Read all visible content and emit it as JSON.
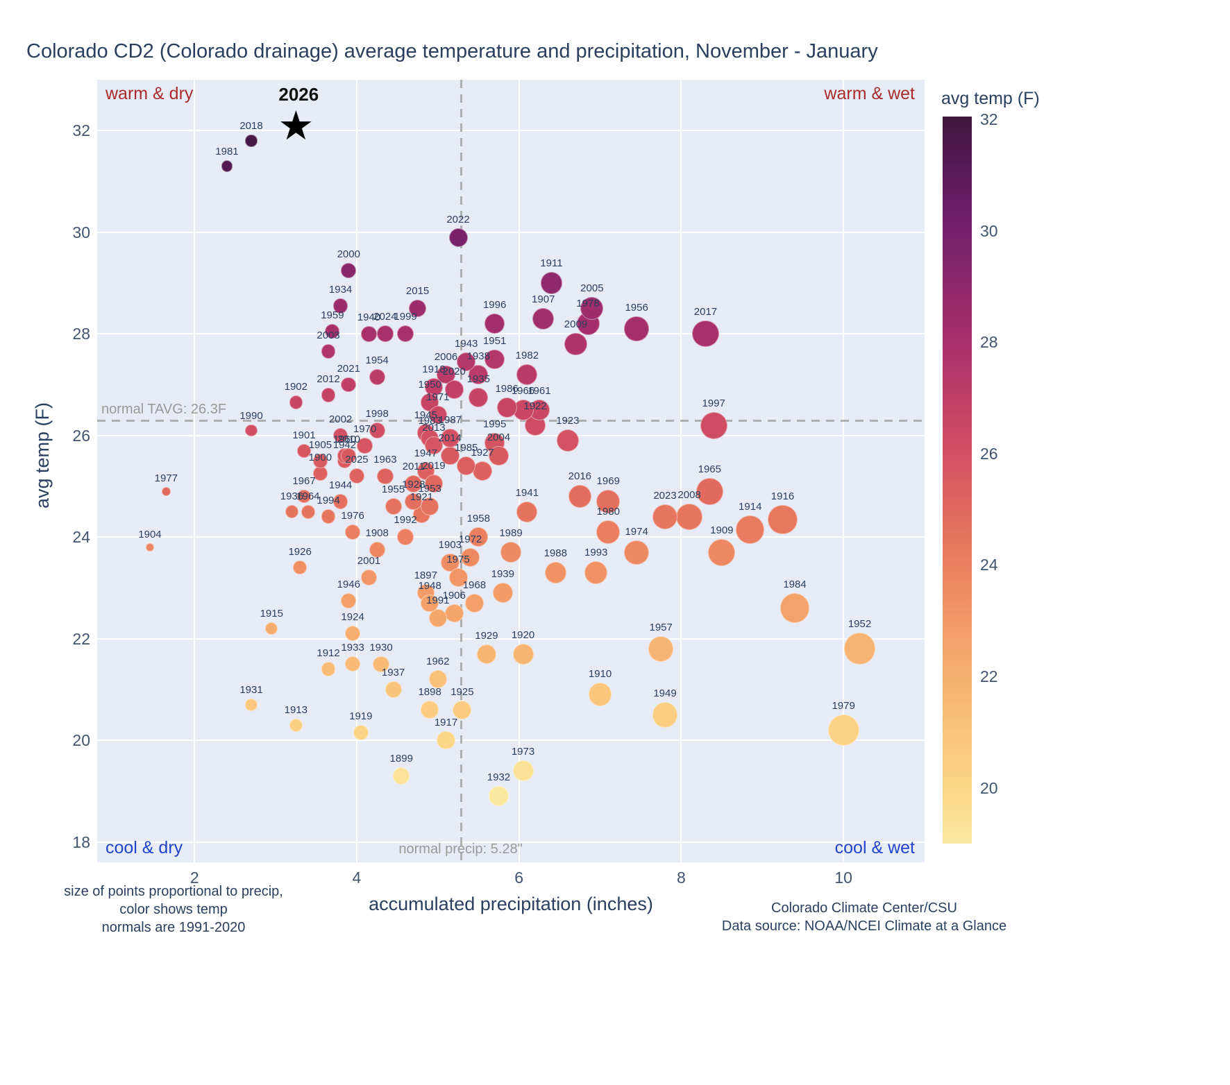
{
  "title": "Colorado CD2 (Colorado drainage) average temperature and precipitation, November - January",
  "quadrants": {
    "top_left": "warm & dry",
    "top_right": "warm & wet",
    "bottom_left": "cool & dry",
    "bottom_right": "cool & wet"
  },
  "reference_lines": {
    "tavg_value": 26.3,
    "tavg_label": "normal TAVG: 26.3F",
    "precip_value": 5.28,
    "precip_label": "normal precip: 5.28\""
  },
  "colorbar": {
    "title": "avg temp (F)",
    "ticks": [
      20,
      22,
      24,
      26,
      28,
      30,
      32
    ],
    "range": [
      19.0,
      32.05
    ]
  },
  "notes": {
    "line1": "size of points proportional to precip,",
    "line2": "color shows temp",
    "line3": "normals are 1991-2020"
  },
  "credits": {
    "line1": "Colorado Climate Center/CSU",
    "line2": "Data source: NOAA/NCEI Climate at a Glance"
  },
  "chart_data": {
    "type": "scatter",
    "x_label": "accumulated precipitation (inches)",
    "y_label": "avg temp (F)",
    "x_range": [
      0.8,
      11.0
    ],
    "y_range": [
      17.6,
      33.0
    ],
    "x_ticks": [
      2,
      4,
      6,
      8,
      10
    ],
    "y_ticks": [
      18,
      20,
      22,
      24,
      26,
      28,
      30,
      32
    ],
    "size_encoding": "marker size proportional to precipitation",
    "color_encoding": "marker color mapped to avg temp (F)",
    "colormap_stops": [
      [
        19,
        "#fae89e"
      ],
      [
        20,
        "#fbd687"
      ],
      [
        21,
        "#f9c47b"
      ],
      [
        22,
        "#f6af6e"
      ],
      [
        23,
        "#f19a66"
      ],
      [
        24,
        "#ea8060"
      ],
      [
        25,
        "#e0685e"
      ],
      [
        26,
        "#d25063"
      ],
      [
        27,
        "#c03e67"
      ],
      [
        28,
        "#a8306b"
      ],
      [
        29,
        "#8f286c"
      ],
      [
        30,
        "#752069"
      ],
      [
        31,
        "#5a1a5a"
      ],
      [
        32,
        "#401740"
      ]
    ],
    "highlight": {
      "year": "2026",
      "precip": 3.25,
      "temp": 32.05,
      "marker": "star"
    },
    "points": [
      {
        "year": 1897,
        "precip": 4.85,
        "temp": 22.9
      },
      {
        "year": 1898,
        "precip": 4.9,
        "temp": 20.6
      },
      {
        "year": 1899,
        "precip": 4.55,
        "temp": 19.3
      },
      {
        "year": 1900,
        "precip": 3.55,
        "temp": 25.25
      },
      {
        "year": 1901,
        "precip": 3.35,
        "temp": 25.7
      },
      {
        "year": 1902,
        "precip": 3.25,
        "temp": 26.65
      },
      {
        "year": 1903,
        "precip": 5.15,
        "temp": 23.5
      },
      {
        "year": 1904,
        "precip": 1.45,
        "temp": 23.8
      },
      {
        "year": 1905,
        "precip": 3.55,
        "temp": 25.5
      },
      {
        "year": 1906,
        "precip": 5.2,
        "temp": 22.5
      },
      {
        "year": 1907,
        "precip": 6.3,
        "temp": 28.3
      },
      {
        "year": 1908,
        "precip": 4.25,
        "temp": 23.75
      },
      {
        "year": 1909,
        "precip": 8.5,
        "temp": 23.7
      },
      {
        "year": 1910,
        "precip": 7.0,
        "temp": 20.9
      },
      {
        "year": 1911,
        "precip": 6.4,
        "temp": 29.0
      },
      {
        "year": 1912,
        "precip": 3.65,
        "temp": 21.4
      },
      {
        "year": 1913,
        "precip": 3.25,
        "temp": 20.3
      },
      {
        "year": 1914,
        "precip": 8.85,
        "temp": 24.15
      },
      {
        "year": 1915,
        "precip": 2.95,
        "temp": 22.2
      },
      {
        "year": 1916,
        "precip": 9.25,
        "temp": 24.35
      },
      {
        "year": 1917,
        "precip": 5.1,
        "temp": 20.0
      },
      {
        "year": 1918,
        "precip": 4.95,
        "temp": 26.95
      },
      {
        "year": 1919,
        "precip": 4.05,
        "temp": 20.15
      },
      {
        "year": 1920,
        "precip": 6.05,
        "temp": 21.7
      },
      {
        "year": 1921,
        "precip": 4.8,
        "temp": 24.45
      },
      {
        "year": 1922,
        "precip": 6.2,
        "temp": 26.2
      },
      {
        "year": 1923,
        "precip": 6.6,
        "temp": 25.9
      },
      {
        "year": 1924,
        "precip": 3.95,
        "temp": 22.1
      },
      {
        "year": 1925,
        "precip": 5.3,
        "temp": 20.6
      },
      {
        "year": 1926,
        "precip": 3.3,
        "temp": 23.4
      },
      {
        "year": 1927,
        "precip": 5.55,
        "temp": 25.3
      },
      {
        "year": 1928,
        "precip": 4.7,
        "temp": 24.7
      },
      {
        "year": 1929,
        "precip": 5.6,
        "temp": 21.7
      },
      {
        "year": 1930,
        "precip": 4.3,
        "temp": 21.5
      },
      {
        "year": 1931,
        "precip": 2.7,
        "temp": 20.7
      },
      {
        "year": 1932,
        "precip": 5.75,
        "temp": 18.9
      },
      {
        "year": 1933,
        "precip": 3.95,
        "temp": 21.5
      },
      {
        "year": 1934,
        "precip": 3.8,
        "temp": 28.55
      },
      {
        "year": 1935,
        "precip": 5.5,
        "temp": 26.75
      },
      {
        "year": 1936,
        "precip": 3.2,
        "temp": 24.5
      },
      {
        "year": 1937,
        "precip": 4.45,
        "temp": 21.0
      },
      {
        "year": 1938,
        "precip": 5.5,
        "temp": 27.2
      },
      {
        "year": 1939,
        "precip": 5.8,
        "temp": 22.9
      },
      {
        "year": 1940,
        "precip": 4.15,
        "temp": 28.0
      },
      {
        "year": 1941,
        "precip": 6.1,
        "temp": 24.5
      },
      {
        "year": 1942,
        "precip": 3.85,
        "temp": 25.5
      },
      {
        "year": 1943,
        "precip": 5.35,
        "temp": 27.45
      },
      {
        "year": 1944,
        "precip": 3.8,
        "temp": 24.7
      },
      {
        "year": 1945,
        "precip": 4.85,
        "temp": 26.05
      },
      {
        "year": 1946,
        "precip": 3.9,
        "temp": 22.75
      },
      {
        "year": 1947,
        "precip": 4.85,
        "temp": 25.3
      },
      {
        "year": 1948,
        "precip": 4.9,
        "temp": 22.7
      },
      {
        "year": 1949,
        "precip": 7.8,
        "temp": 20.5
      },
      {
        "year": 1950,
        "precip": 4.9,
        "temp": 26.65
      },
      {
        "year": 1951,
        "precip": 5.7,
        "temp": 27.5
      },
      {
        "year": 1952,
        "precip": 10.2,
        "temp": 21.8
      },
      {
        "year": 1953,
        "precip": 4.9,
        "temp": 24.6
      },
      {
        "year": 1954,
        "precip": 4.25,
        "temp": 27.15
      },
      {
        "year": 1955,
        "precip": 4.45,
        "temp": 24.6
      },
      {
        "year": 1956,
        "precip": 7.45,
        "temp": 28.1
      },
      {
        "year": 1957,
        "precip": 7.75,
        "temp": 21.8
      },
      {
        "year": 1958,
        "precip": 5.5,
        "temp": 24.0
      },
      {
        "year": 1959,
        "precip": 3.7,
        "temp": 28.05
      },
      {
        "year": 1960,
        "precip": 3.85,
        "temp": 25.6
      },
      {
        "year": 1961,
        "precip": 6.25,
        "temp": 26.5
      },
      {
        "year": 1962,
        "precip": 5.0,
        "temp": 21.2
      },
      {
        "year": 1963,
        "precip": 4.35,
        "temp": 25.2
      },
      {
        "year": 1964,
        "precip": 3.4,
        "temp": 24.5
      },
      {
        "year": 1965,
        "precip": 8.35,
        "temp": 24.9
      },
      {
        "year": 1966,
        "precip": 6.05,
        "temp": 26.5
      },
      {
        "year": 1967,
        "precip": 3.35,
        "temp": 24.8
      },
      {
        "year": 1968,
        "precip": 5.45,
        "temp": 22.7
      },
      {
        "year": 1969,
        "precip": 7.1,
        "temp": 24.7
      },
      {
        "year": 1970,
        "precip": 4.1,
        "temp": 25.8
      },
      {
        "year": 1971,
        "precip": 5.0,
        "temp": 26.4
      },
      {
        "year": 1972,
        "precip": 5.4,
        "temp": 23.6
      },
      {
        "year": 1973,
        "precip": 6.05,
        "temp": 19.4
      },
      {
        "year": 1974,
        "precip": 7.45,
        "temp": 23.7
      },
      {
        "year": 1975,
        "precip": 5.25,
        "temp": 23.2
      },
      {
        "year": 1976,
        "precip": 3.95,
        "temp": 24.1
      },
      {
        "year": 1977,
        "precip": 1.65,
        "temp": 24.9
      },
      {
        "year": 1978,
        "precip": 6.85,
        "temp": 28.2
      },
      {
        "year": 1979,
        "precip": 10.0,
        "temp": 20.2
      },
      {
        "year": 1980,
        "precip": 7.1,
        "temp": 24.1
      },
      {
        "year": 1981,
        "precip": 2.4,
        "temp": 31.3
      },
      {
        "year": 1982,
        "precip": 6.1,
        "temp": 27.2
      },
      {
        "year": 1983,
        "precip": 4.9,
        "temp": 25.95
      },
      {
        "year": 1984,
        "precip": 9.4,
        "temp": 22.6
      },
      {
        "year": 1985,
        "precip": 5.35,
        "temp": 25.4
      },
      {
        "year": 1986,
        "precip": 5.85,
        "temp": 26.55
      },
      {
        "year": 1987,
        "precip": 5.15,
        "temp": 25.95
      },
      {
        "year": 1988,
        "precip": 6.45,
        "temp": 23.3
      },
      {
        "year": 1989,
        "precip": 5.9,
        "temp": 23.7
      },
      {
        "year": 1990,
        "precip": 2.7,
        "temp": 26.1
      },
      {
        "year": 1991,
        "precip": 5.0,
        "temp": 22.4
      },
      {
        "year": 1992,
        "precip": 4.6,
        "temp": 24.0
      },
      {
        "year": 1993,
        "precip": 6.95,
        "temp": 23.3
      },
      {
        "year": 1994,
        "precip": 3.65,
        "temp": 24.4
      },
      {
        "year": 1995,
        "precip": 5.7,
        "temp": 25.85
      },
      {
        "year": 1996,
        "precip": 5.7,
        "temp": 28.2
      },
      {
        "year": 1997,
        "precip": 8.4,
        "temp": 26.2
      },
      {
        "year": 1998,
        "precip": 4.25,
        "temp": 26.1
      },
      {
        "year": 1999,
        "precip": 4.6,
        "temp": 28.0
      },
      {
        "year": 2000,
        "precip": 3.9,
        "temp": 29.25
      },
      {
        "year": 2001,
        "precip": 4.15,
        "temp": 23.2
      },
      {
        "year": 2002,
        "precip": 3.8,
        "temp": 26.0
      },
      {
        "year": 2003,
        "precip": 3.65,
        "temp": 27.65
      },
      {
        "year": 2004,
        "precip": 5.75,
        "temp": 25.6
      },
      {
        "year": 2005,
        "precip": 6.9,
        "temp": 28.5
      },
      {
        "year": 2006,
        "precip": 5.1,
        "temp": 27.2
      },
      {
        "year": 2008,
        "precip": 8.1,
        "temp": 24.4
      },
      {
        "year": 2009,
        "precip": 6.7,
        "temp": 27.8
      },
      {
        "year": 2010,
        "precip": 3.9,
        "temp": 25.6
      },
      {
        "year": 2011,
        "precip": 4.7,
        "temp": 25.05
      },
      {
        "year": 2012,
        "precip": 3.65,
        "temp": 26.8
      },
      {
        "year": 2013,
        "precip": 4.95,
        "temp": 25.8
      },
      {
        "year": 2014,
        "precip": 5.15,
        "temp": 25.6
      },
      {
        "year": 2015,
        "precip": 4.75,
        "temp": 28.5
      },
      {
        "year": 2016,
        "precip": 6.75,
        "temp": 24.8
      },
      {
        "year": 2017,
        "precip": 8.3,
        "temp": 28.0
      },
      {
        "year": 2018,
        "precip": 2.7,
        "temp": 31.8
      },
      {
        "year": 2019,
        "precip": 4.95,
        "temp": 25.05
      },
      {
        "year": 2020,
        "precip": 5.2,
        "temp": 26.9
      },
      {
        "year": 2021,
        "precip": 3.9,
        "temp": 27.0
      },
      {
        "year": 2022,
        "precip": 5.25,
        "temp": 29.9
      },
      {
        "year": 2023,
        "precip": 7.8,
        "temp": 24.4
      },
      {
        "year": 2024,
        "precip": 4.35,
        "temp": 28.0
      },
      {
        "year": 2025,
        "precip": 4.0,
        "temp": 25.2
      }
    ]
  }
}
